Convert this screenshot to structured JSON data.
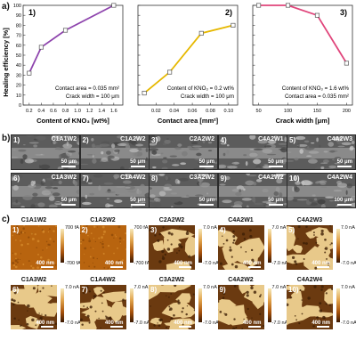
{
  "panel_a": {
    "letter": "a)",
    "ylabel": "Healing efficiency [%]",
    "yticks": [
      "0",
      "10",
      "20",
      "30",
      "40",
      "50",
      "60",
      "70",
      "80",
      "90",
      "100"
    ],
    "plots": [
      {
        "number": "1)",
        "xlabel": "Content of KNO₃ [wt%]",
        "xticks": [
          "0.2",
          "0.4",
          "0.6",
          "0.8",
          "1.0",
          "1.2",
          "1.4",
          "1.6"
        ],
        "note1": "Contact area = 0.035 mm²",
        "note2": "Crack width = 100 μm",
        "color": "#8e44ad"
      },
      {
        "number": "2)",
        "xlabel": "Contact area [mm²]",
        "xticks": [
          "0.02",
          "0.04",
          "0.06",
          "0.08",
          "0.10"
        ],
        "note1": "Content of KNO₃ = 0.2 wt%",
        "note2": "Crack width = 100 μm",
        "color": "#e6b800"
      },
      {
        "number": "3)",
        "xlabel": "Crack width [μm]",
        "xticks": [
          "50",
          "100",
          "150",
          "200"
        ],
        "note1": "Content of KNO₃ = 1.6 wt%",
        "note2": "Contact area = 0.035 mm²",
        "color": "#e0457b"
      }
    ]
  },
  "chart_data": [
    {
      "type": "line",
      "title": "",
      "xlabel": "Content of KNO₃ [wt%]",
      "ylabel": "Healing efficiency [%]",
      "x": [
        0.2,
        0.4,
        0.8,
        1.6
      ],
      "y": [
        32,
        58,
        75,
        100
      ],
      "xlim": [
        0.1,
        1.75
      ],
      "ylim": [
        0,
        100
      ]
    },
    {
      "type": "line",
      "title": "",
      "xlabel": "Contact area [mm²]",
      "ylabel": "Healing efficiency [%]",
      "x": [
        0.007,
        0.035,
        0.07,
        0.105
      ],
      "y": [
        12,
        33,
        72,
        80
      ],
      "xlim": [
        0.0,
        0.11
      ],
      "ylim": [
        0,
        100
      ]
    },
    {
      "type": "line",
      "title": "",
      "xlabel": "Crack width [μm]",
      "ylabel": "Healing efficiency [%]",
      "x": [
        50,
        100,
        150,
        200
      ],
      "y": [
        100,
        100,
        90,
        42
      ],
      "xlim": [
        40,
        210
      ],
      "ylim": [
        0,
        100
      ]
    }
  ],
  "panel_b": {
    "letter": "b)",
    "tiles": [
      {
        "num": "1)",
        "label": "C1A1W2",
        "scale": "50 μm"
      },
      {
        "num": "2)",
        "label": "C1A2W2",
        "scale": "50 μm"
      },
      {
        "num": "3)",
        "label": "C2A2W2",
        "scale": "50 μm"
      },
      {
        "num": "4)",
        "label": "C4A2W1",
        "scale": "50 μm"
      },
      {
        "num": "5)",
        "label": "C4A2W3",
        "scale": "50 μm"
      },
      {
        "num": "6)",
        "label": "C1A3W2",
        "scale": "50 μm"
      },
      {
        "num": "7)",
        "label": "C1A4W2",
        "scale": "50 μm"
      },
      {
        "num": "8)",
        "label": "C3A2W2",
        "scale": "50 μm"
      },
      {
        "num": "9)",
        "label": "C4A2W2",
        "scale": "50 μm"
      },
      {
        "num": "10)",
        "label": "C4A2W4",
        "scale": "100 μm"
      }
    ]
  },
  "panel_c": {
    "letter": "c)",
    "tiles": [
      {
        "num": "1)",
        "label": "C1A1W2",
        "scale": "400 nm",
        "ctop": "700 fA",
        "cbot": "-700 fA"
      },
      {
        "num": "2)",
        "label": "C1A2W2",
        "scale": "400 nm",
        "ctop": "700 fA",
        "cbot": "-700 fA"
      },
      {
        "num": "3)",
        "label": "C2A2W2",
        "scale": "400 nm",
        "ctop": "7.0 nA",
        "cbot": "-7.0 nA"
      },
      {
        "num": "4)",
        "label": "C4A2W1",
        "scale": "400 nm",
        "ctop": "7.0 nA",
        "cbot": "-7.0 nA"
      },
      {
        "num": "5)",
        "label": "C4A2W3",
        "scale": "400 nm",
        "ctop": "7.0 nA",
        "cbot": "-7.0 nA"
      },
      {
        "num": "6)",
        "label": "C1A3W2",
        "scale": "400 nm",
        "ctop": "7.0 nA",
        "cbot": "-7.0 nA"
      },
      {
        "num": "7)",
        "label": "C1A4W2",
        "scale": "400 nm",
        "ctop": "7.0 nA",
        "cbot": "-7.0 nA"
      },
      {
        "num": "8)",
        "label": "C3A2W2",
        "scale": "400 nm",
        "ctop": "7.0 nA",
        "cbot": "-7.0 nA"
      },
      {
        "num": "9)",
        "label": "C4A2W2",
        "scale": "400 nm",
        "ctop": "7.0 nA",
        "cbot": "-7.0 nA"
      },
      {
        "num": "10)",
        "label": "C4A2W4",
        "scale": "400 nm",
        "ctop": "7.0 nA",
        "cbot": "-7.0 nA"
      }
    ]
  }
}
